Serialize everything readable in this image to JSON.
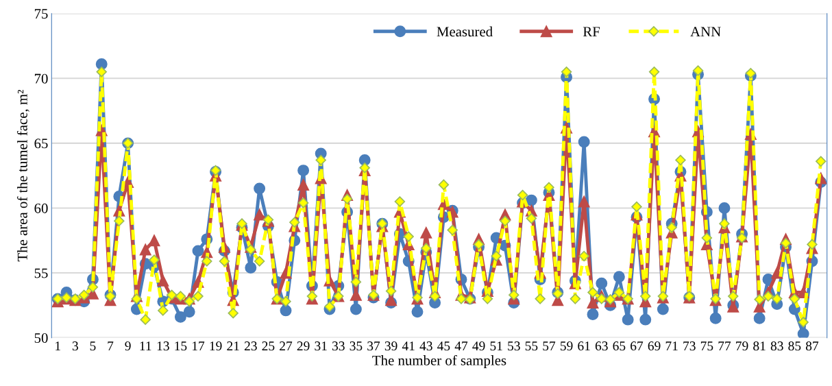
{
  "chart_data": {
    "type": "line",
    "xlabel": "The number of samples",
    "ylabel": "The area of the tumel face, m²",
    "categories": [
      "1",
      null,
      "3",
      null,
      "5",
      null,
      "7",
      null,
      "9",
      null,
      "11",
      null,
      "13",
      null,
      "15",
      null,
      "17",
      null,
      "19",
      null,
      "21",
      null,
      "23",
      null,
      "25",
      null,
      "27",
      null,
      "29",
      null,
      "31",
      null,
      "33",
      null,
      "35",
      null,
      "37",
      null,
      "39",
      null,
      "41",
      null,
      "43",
      null,
      "45",
      null,
      "47",
      null,
      "49",
      null,
      "51",
      null,
      "53",
      null,
      "55",
      null,
      "57",
      null,
      "59",
      null,
      "61",
      null,
      "63",
      null,
      "65",
      null,
      "67",
      null,
      "69",
      null,
      "71",
      null,
      "73",
      null,
      "75",
      null,
      "77",
      null,
      "79",
      null,
      "81",
      null,
      "83",
      null,
      "85",
      null,
      "87",
      null
    ],
    "ylim": [
      50,
      75
    ],
    "yticks": [
      50,
      55,
      60,
      65,
      70,
      75
    ],
    "grid": "y",
    "legend": "top right",
    "series": [
      {
        "name": "Measured",
        "color": "#4a7ebb",
        "marker": "circle",
        "line_style": "solid",
        "values": [
          53.0,
          53.5,
          52.9,
          52.8,
          54.5,
          71.1,
          53.3,
          60.9,
          65.0,
          52.2,
          55.7,
          55.5,
          52.8,
          53.0,
          51.6,
          52.0,
          56.7,
          57.6,
          62.8,
          56.7,
          53.5,
          58.5,
          55.4,
          61.5,
          58.6,
          54.3,
          52.1,
          57.5,
          62.9,
          54.0,
          64.2,
          52.2,
          54.0,
          59.7,
          52.2,
          63.7,
          53.1,
          58.8,
          52.7,
          58.0,
          55.9,
          52.0,
          56.6,
          52.7,
          59.3,
          59.8,
          54.5,
          53.0,
          57.0,
          53.5,
          57.7,
          57.1,
          52.7,
          60.4,
          60.6,
          54.5,
          61.2,
          53.5,
          70.1,
          54.4,
          65.1,
          51.8,
          54.2,
          52.5,
          54.7,
          51.4,
          59.3,
          51.4,
          68.4,
          52.2,
          58.8,
          62.8,
          53.1,
          70.3,
          59.7,
          51.5,
          60.0,
          52.5,
          58.0,
          70.2,
          51.5,
          54.5,
          52.6,
          57.0,
          52.2,
          50.3,
          55.9,
          62.0
        ]
      },
      {
        "name": "RF",
        "color": "#be4b48",
        "marker": "triangle",
        "line_style": "solid",
        "values": [
          52.8,
          53.0,
          52.9,
          53.1,
          53.4,
          66.0,
          52.9,
          59.8,
          62.0,
          53.2,
          56.8,
          57.5,
          54.4,
          53.1,
          53.0,
          53.0,
          54.3,
          56.6,
          62.5,
          57.0,
          52.9,
          58.7,
          57.0,
          59.5,
          59.0,
          53.0,
          55.0,
          58.6,
          61.8,
          53.0,
          62.3,
          54.4,
          53.2,
          61.0,
          53.3,
          62.9,
          53.3,
          58.6,
          52.9,
          59.7,
          57.2,
          53.0,
          58.1,
          53.5,
          60.3,
          59.7,
          53.3,
          53.1,
          57.6,
          53.6,
          56.0,
          59.5,
          53.0,
          60.5,
          59.8,
          55.0,
          61.0,
          52.9,
          66.2,
          54.2,
          60.5,
          52.7,
          53.2,
          52.8,
          53.3,
          53.0,
          59.5,
          52.8,
          65.9,
          53.1,
          58.1,
          62.5,
          53.1,
          65.9,
          57.2,
          52.9,
          58.5,
          52.4,
          57.8,
          65.7,
          52.4,
          53.5,
          55.0,
          57.6,
          53.5,
          53.5,
          56.9,
          62.3
        ]
      },
      {
        "name": "ANN",
        "color": "#ffff00",
        "marker": "diamond",
        "line_style": "dashed",
        "values": [
          53.0,
          53.1,
          53.0,
          53.3,
          53.9,
          70.5,
          53.2,
          59.0,
          65.0,
          53.0,
          51.4,
          56.0,
          52.1,
          53.3,
          53.2,
          52.8,
          53.2,
          55.9,
          62.9,
          55.9,
          51.9,
          58.8,
          56.8,
          55.9,
          59.1,
          53.0,
          52.8,
          58.9,
          60.4,
          53.2,
          63.7,
          52.4,
          53.2,
          60.7,
          54.3,
          63.1,
          53.3,
          58.8,
          53.6,
          60.5,
          57.8,
          53.1,
          56.9,
          53.2,
          61.8,
          58.3,
          53.0,
          52.95,
          57.2,
          53.0,
          56.3,
          59.0,
          53.3,
          61.0,
          59.2,
          53.0,
          61.6,
          53.4,
          70.5,
          53.0,
          56.3,
          53.5,
          53.0,
          52.95,
          53.5,
          53.0,
          60.1,
          53.2,
          70.5,
          53.2,
          58.5,
          63.7,
          53.2,
          70.6,
          57.7,
          53.0,
          58.8,
          53.2,
          57.7,
          70.4,
          52.95,
          53.2,
          53.0,
          57.3,
          53.0,
          51.2,
          57.2,
          63.6
        ]
      }
    ]
  }
}
